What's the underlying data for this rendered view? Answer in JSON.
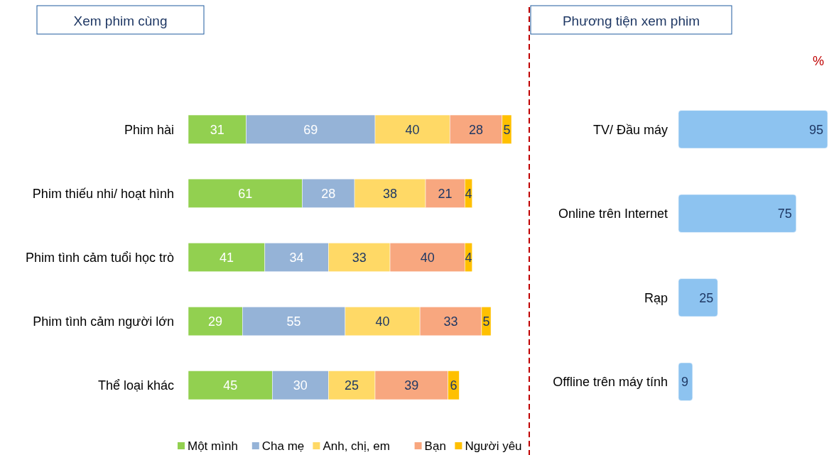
{
  "chart_data": [
    {
      "type": "bar",
      "title": "Xem phim cùng",
      "orientation": "horizontal",
      "stacked": true,
      "data_labels": true,
      "legend": "bottom",
      "categories": [
        "Phim hài",
        "Phim thiếu nhi/ hoạt hình",
        "Phim tình cảm tuổi học trò",
        "Phim tình cảm người lớn",
        "Thể loại khác"
      ],
      "series": [
        {
          "name": "Một mình",
          "color": "#92d050",
          "values": [
            31,
            61,
            41,
            29,
            45
          ]
        },
        {
          "name": "Cha mẹ",
          "color": "#95b3d7",
          "values": [
            69,
            28,
            34,
            55,
            30
          ]
        },
        {
          "name": "Anh, chị, em",
          "color": "#ffd966",
          "values": [
            40,
            38,
            33,
            40,
            25
          ]
        },
        {
          "name": "Bạn",
          "color": "#f8a77f",
          "values": [
            28,
            21,
            40,
            33,
            39
          ]
        },
        {
          "name": "Người yêu",
          "color": "#ffc000",
          "values": [
            5,
            4,
            4,
            5,
            6
          ]
        }
      ]
    },
    {
      "type": "bar",
      "title": "Phương tiện xem phim",
      "orientation": "horizontal",
      "data_labels": true,
      "annotations": [
        "%"
      ],
      "categories": [
        "TV/ Đầu máy",
        "Online trên Internet",
        "Rạp",
        "Offline trên máy tính"
      ],
      "series": [
        {
          "color": "#8dc3f0",
          "values": [
            95,
            75,
            25,
            9
          ]
        }
      ]
    }
  ]
}
